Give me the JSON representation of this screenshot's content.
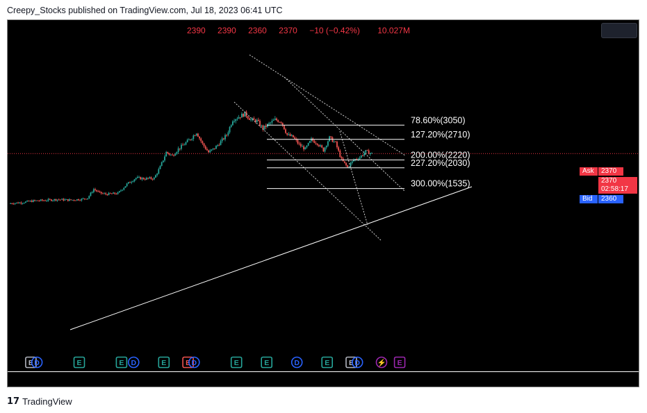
{
  "attribution": "Creepy_Stocks published on TradingView.com, Jul 18, 2023 06:41 UTC",
  "ohlc": {
    "open": "2390",
    "high": "2390",
    "low": "2360",
    "close": "2370",
    "change": "−10 (−0.42%)",
    "volume": "10.027M"
  },
  "price_scale": {
    "ask_label": "Ask",
    "ask_value": "2370",
    "last_value": "2370",
    "countdown": "02:58:17",
    "bid_label": "Bid",
    "bid_value": "2360"
  },
  "branding": "TradingView",
  "colors": {
    "up": "#26a69a",
    "down": "#ef5350",
    "accent_red": "#f23645",
    "bid_blue": "#2962ff",
    "background": "#000000"
  },
  "chart_data": {
    "type": "candlestick",
    "fib_levels": [
      {
        "label": "78.60%(3050)",
        "ratio": 0.786,
        "price": 3050
      },
      {
        "label": "127.20%(2710)",
        "ratio": 1.272,
        "price": 2710
      },
      {
        "label": "200.00%(2220)",
        "ratio": 2.0,
        "price": 2220
      },
      {
        "label": "227.20%(2030)",
        "ratio": 2.272,
        "price": 2030
      },
      {
        "label": "300.00%(1535)",
        "ratio": 3.0,
        "price": 1535
      }
    ],
    "last_price": 2370,
    "price_path": [
      {
        "t": 0,
        "p": 1180
      },
      {
        "t": 4,
        "p": 1200
      },
      {
        "t": 8,
        "p": 1240
      },
      {
        "t": 12,
        "p": 1255
      },
      {
        "t": 16,
        "p": 1275
      },
      {
        "t": 20,
        "p": 1260
      },
      {
        "t": 24,
        "p": 1280
      },
      {
        "t": 26,
        "p": 1310
      },
      {
        "t": 28,
        "p": 1520
      },
      {
        "t": 30,
        "p": 1430
      },
      {
        "t": 32,
        "p": 1400
      },
      {
        "t": 36,
        "p": 1420
      },
      {
        "t": 39,
        "p": 1640
      },
      {
        "t": 42,
        "p": 1790
      },
      {
        "t": 45,
        "p": 1770
      },
      {
        "t": 48,
        "p": 1780
      },
      {
        "t": 50,
        "p": 2050
      },
      {
        "t": 52,
        "p": 2400
      },
      {
        "t": 54,
        "p": 2320
      },
      {
        "t": 56,
        "p": 2480
      },
      {
        "t": 58,
        "p": 2600
      },
      {
        "t": 60,
        "p": 2720
      },
      {
        "t": 62,
        "p": 2880
      },
      {
        "t": 64,
        "p": 2600
      },
      {
        "t": 66,
        "p": 2400
      },
      {
        "t": 68,
        "p": 2500
      },
      {
        "t": 70,
        "p": 2650
      },
      {
        "t": 72,
        "p": 2820
      },
      {
        "t": 74,
        "p": 3180
      },
      {
        "t": 76,
        "p": 3250
      },
      {
        "t": 78,
        "p": 3320
      },
      {
        "t": 80,
        "p": 3180
      },
      {
        "t": 82,
        "p": 3150
      },
      {
        "t": 84,
        "p": 2970
      },
      {
        "t": 86,
        "p": 3080
      },
      {
        "t": 88,
        "p": 3180
      },
      {
        "t": 90,
        "p": 3140
      },
      {
        "t": 92,
        "p": 2820
      },
      {
        "t": 94,
        "p": 2760
      },
      {
        "t": 96,
        "p": 2580
      },
      {
        "t": 98,
        "p": 2480
      },
      {
        "t": 100,
        "p": 2700
      },
      {
        "t": 102,
        "p": 2620
      },
      {
        "t": 104,
        "p": 2450
      },
      {
        "t": 106,
        "p": 2750
      },
      {
        "t": 108,
        "p": 2620
      },
      {
        "t": 110,
        "p": 2220
      },
      {
        "t": 112,
        "p": 2040
      },
      {
        "t": 114,
        "p": 2220
      },
      {
        "t": 116,
        "p": 2280
      },
      {
        "t": 118,
        "p": 2420
      },
      {
        "t": 120,
        "p": 2370
      }
    ],
    "event_markers": [
      {
        "t": 4,
        "type": "E",
        "color": "#b2b5be"
      },
      {
        "t": 6,
        "type": "D",
        "color": "#2962ff"
      },
      {
        "t": 20,
        "type": "E",
        "color": "#26a69a"
      },
      {
        "t": 34,
        "type": "E",
        "color": "#26a69a"
      },
      {
        "t": 38,
        "type": "D",
        "color": "#2962ff"
      },
      {
        "t": 48,
        "type": "E",
        "color": "#26a69a"
      },
      {
        "t": 56,
        "type": "E",
        "color": "#ef5350"
      },
      {
        "t": 58,
        "type": "D",
        "color": "#2962ff"
      },
      {
        "t": 72,
        "type": "E",
        "color": "#26a69a"
      },
      {
        "t": 82,
        "type": "E",
        "color": "#26a69a"
      },
      {
        "t": 92,
        "type": "D",
        "color": "#2962ff"
      },
      {
        "t": 102,
        "type": "E",
        "color": "#26a69a"
      },
      {
        "t": 110,
        "type": "E",
        "color": "#b2b5be"
      },
      {
        "t": 112,
        "type": "D",
        "color": "#2962ff"
      },
      {
        "t": 120,
        "type": "⚡",
        "color": "#9c27b0"
      },
      {
        "t": 126,
        "type": "E",
        "color": "#9c27b0"
      }
    ]
  }
}
